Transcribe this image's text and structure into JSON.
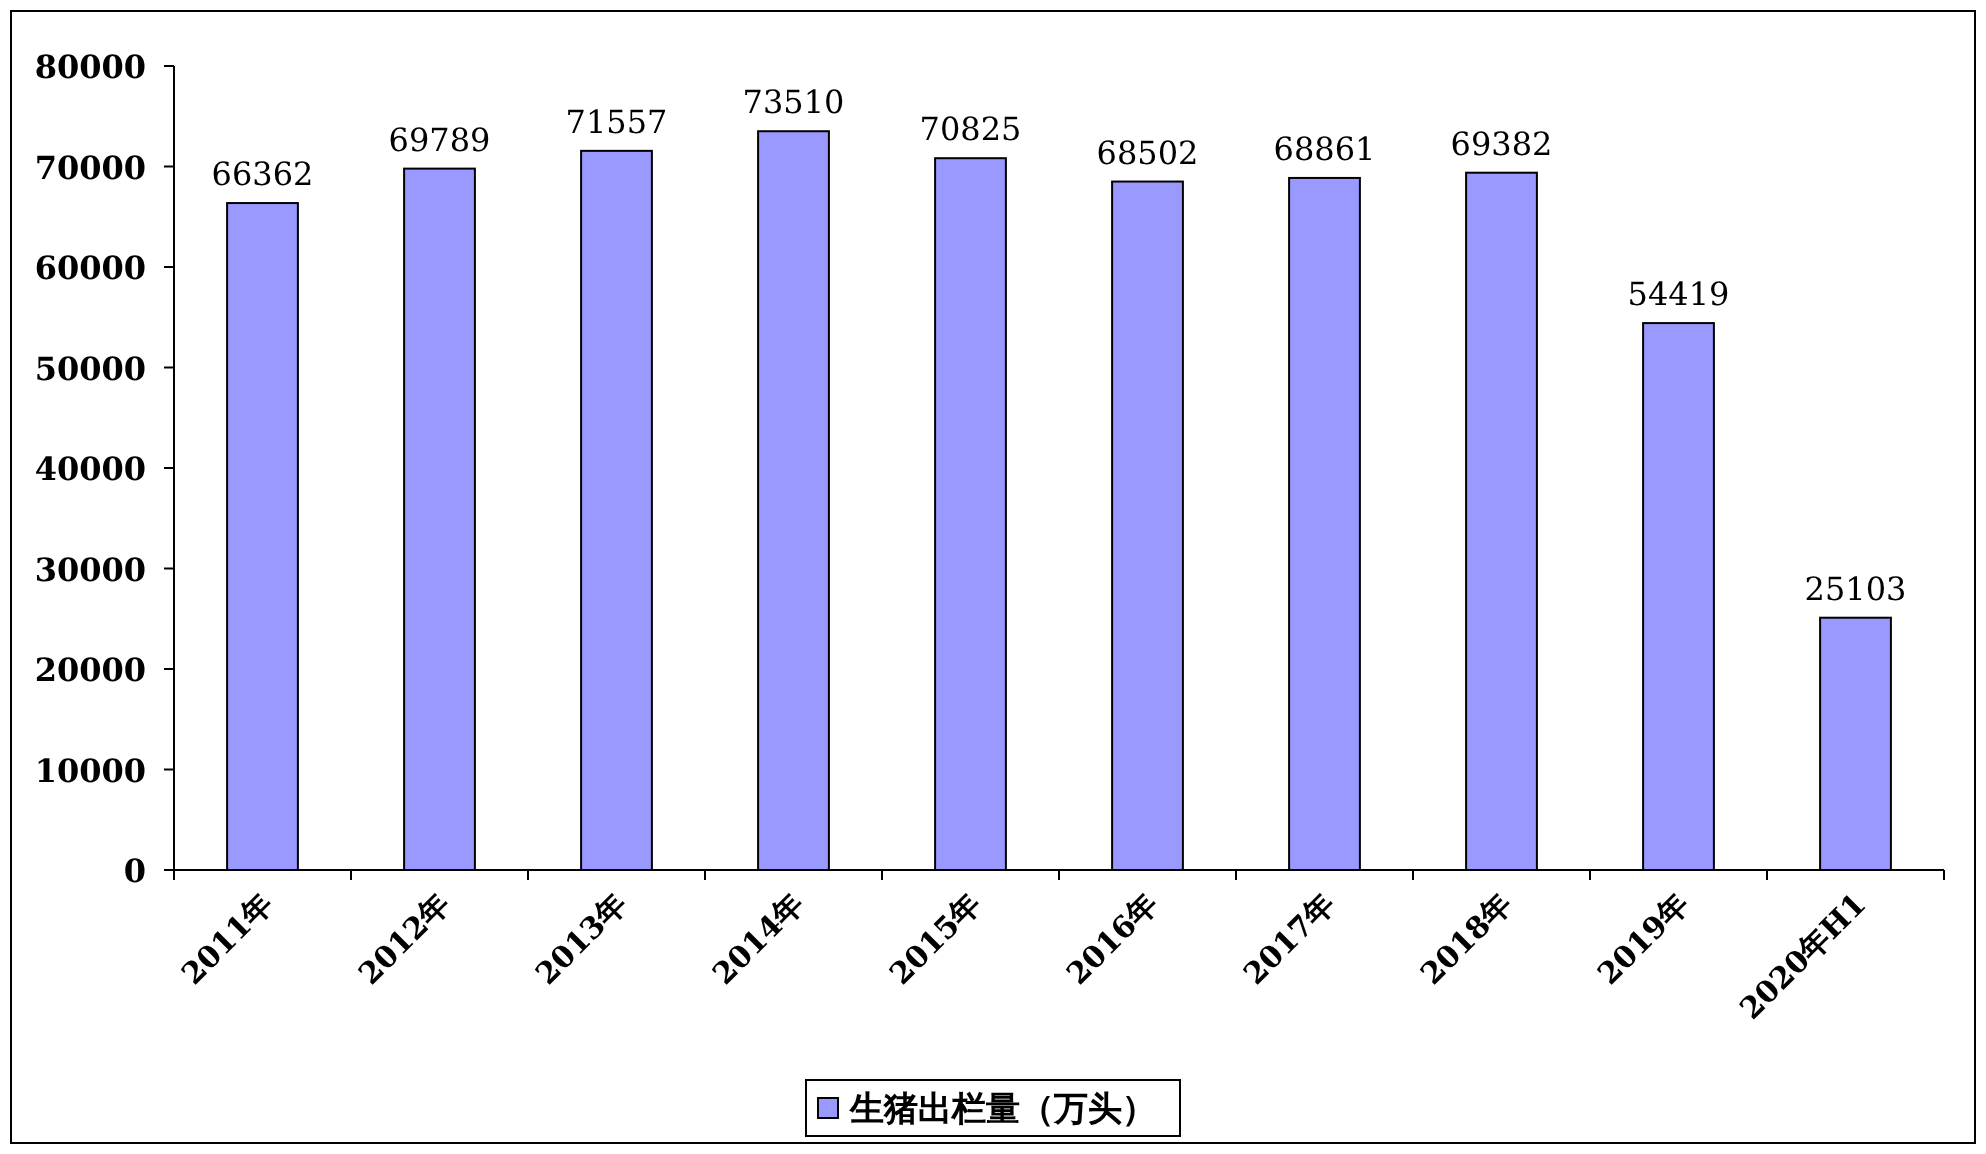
{
  "chart_data": {
    "type": "bar",
    "categories": [
      "2011年",
      "2012年",
      "2013年",
      "2014年",
      "2015年",
      "2016年",
      "2017年",
      "2018年",
      "2019年",
      "2020年H1"
    ],
    "series": [
      {
        "name": "生猪出栏量（万头）",
        "color": "#9999ff",
        "values": [
          66362,
          69789,
          71557,
          73510,
          70825,
          68502,
          68861,
          69382,
          54419,
          25103
        ]
      }
    ],
    "ylim": [
      0,
      80000
    ],
    "yticks": [
      0,
      10000,
      20000,
      30000,
      40000,
      50000,
      60000,
      70000,
      80000
    ],
    "data_labels": true,
    "legend": "bottom"
  }
}
